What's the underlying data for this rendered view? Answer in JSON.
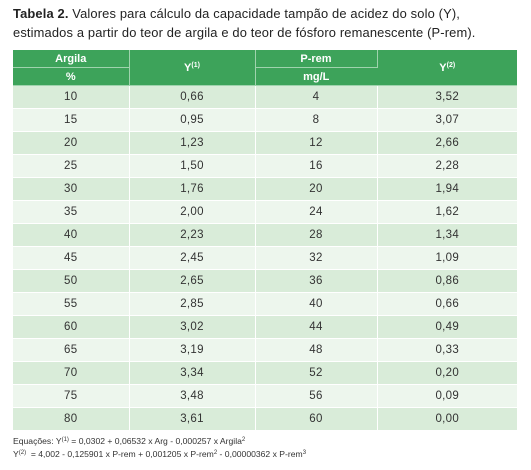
{
  "caption": {
    "lead": "Tabela 2.",
    "text": "Valores para cálculo da capacidade tampão de acidez do solo (Y), estimados a partir do teor de argila e do teor de fósforo remanescente (P-rem)."
  },
  "table": {
    "header": {
      "argila": "Argila",
      "argila_unit": "%",
      "y1": "Y",
      "y1_sup": "(1)",
      "prem": "P-rem",
      "prem_unit": "mg/L",
      "y2": "Y",
      "y2_sup": "(2)"
    },
    "rows": [
      [
        "10",
        "0,66",
        "4",
        "3,52"
      ],
      [
        "15",
        "0,95",
        "8",
        "3,07"
      ],
      [
        "20",
        "1,23",
        "12",
        "2,66"
      ],
      [
        "25",
        "1,50",
        "16",
        "2,28"
      ],
      [
        "30",
        "1,76",
        "20",
        "1,94"
      ],
      [
        "35",
        "2,00",
        "24",
        "1,62"
      ],
      [
        "40",
        "2,23",
        "28",
        "1,34"
      ],
      [
        "45",
        "2,45",
        "32",
        "1,09"
      ],
      [
        "50",
        "2,65",
        "36",
        "0,86"
      ],
      [
        "55",
        "2,85",
        "40",
        "0,66"
      ],
      [
        "60",
        "3,02",
        "44",
        "0,49"
      ],
      [
        "65",
        "3,19",
        "48",
        "0,33"
      ],
      [
        "70",
        "3,34",
        "52",
        "0,20"
      ],
      [
        "75",
        "3,48",
        "56",
        "0,09"
      ],
      [
        "80",
        "3,61",
        "60",
        "0,00"
      ]
    ]
  },
  "notes": {
    "eq1_label": "Equações: Y",
    "eq1_sup": "(1)",
    "eq1_body": " = 0,0302 + 0,06532 x Arg - 0,000257 x Argila",
    "eq1_pow": "2",
    "eq2_label": "Y",
    "eq2_sup": "(2)",
    "eq2_part1": "  = 4,002 - 0,125901 x P-rem + 0,001205 x P-rem",
    "eq2_pow1": "2",
    "eq2_part2": " - 0,00000362 x P-rem",
    "eq2_pow2": "3"
  }
}
